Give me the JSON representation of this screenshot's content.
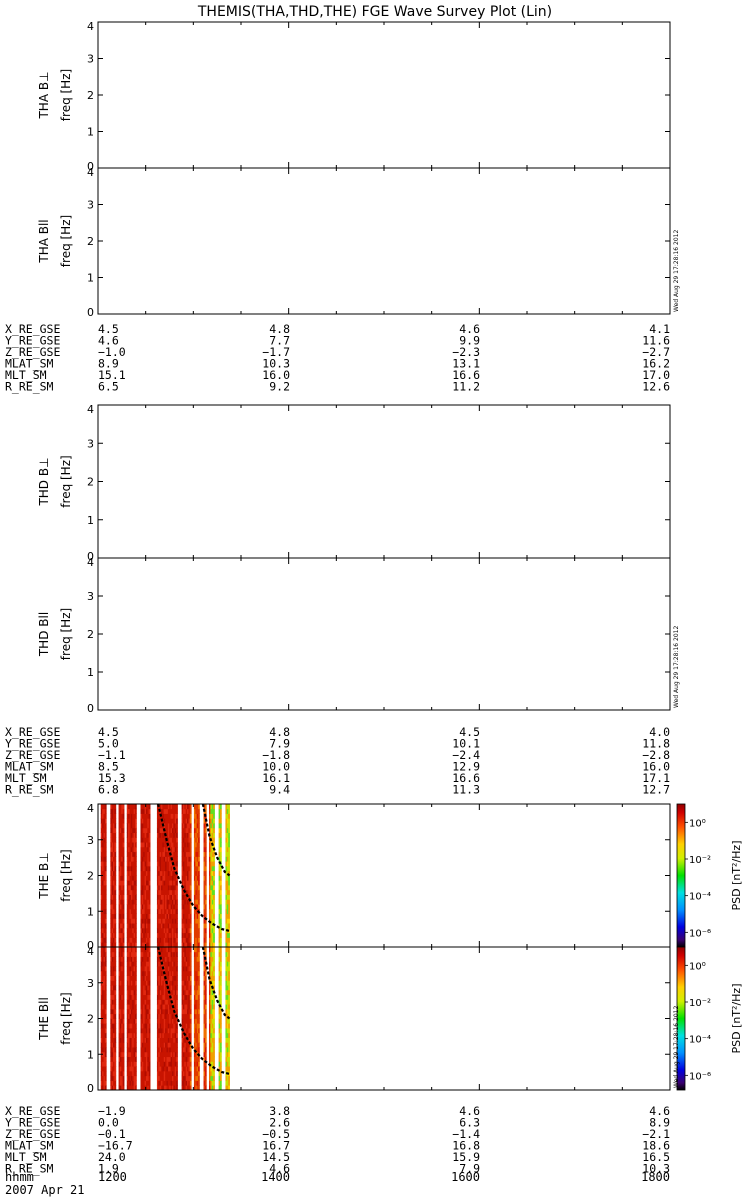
{
  "title": "THEMIS(THA,THD,THE) FGE Wave Survey Plot (Lin)",
  "timestamp_stamp": "Wed Aug 29 17:28:16 2012",
  "date_label": "2007 Apr 21",
  "ephem_labels": [
    "X_RE_GSE",
    "Y_RE_GSE",
    "Z_RE_GSE",
    "MLAT_SM",
    "MLT_SM",
    "R_RE_SM"
  ],
  "time_label": "hhmm",
  "time_ticks": [
    "1200",
    "1400",
    "1600",
    "1800"
  ],
  "freq_unit": "freq [Hz]",
  "colorbar": {
    "label_psd": "PSD",
    "label_units": "[nT²/Hz]",
    "ticks": [
      "10⁰",
      "10⁻²",
      "10⁻⁴",
      "10⁻⁶"
    ],
    "exponents": [
      0,
      -2,
      -4,
      -6
    ]
  },
  "chart_data": [
    {
      "type": "heatmap",
      "id": "tha-bperp",
      "probe_label": "THA B⊥",
      "ylabel": "freq [Hz]",
      "ylim": [
        0,
        4
      ],
      "yticks": [
        "0",
        "1",
        "2",
        "3",
        "4"
      ],
      "has_data": false
    },
    {
      "type": "heatmap",
      "id": "tha-bpar",
      "probe_label": "THA Bll",
      "ylabel": "freq [Hz]",
      "ylim": [
        0,
        4
      ],
      "yticks": [
        "0",
        "1",
        "2",
        "3",
        "4"
      ],
      "has_data": false
    },
    {
      "type": "table",
      "id": "tha-ephem",
      "rows": [
        {
          "label": "X_RE_GSE",
          "values": [
            "4.5",
            "4.8",
            "4.6",
            "4.1"
          ]
        },
        {
          "label": "Y_RE_GSE",
          "values": [
            "4.6",
            "7.7",
            "9.9",
            "11.6"
          ]
        },
        {
          "label": "Z_RE_GSE",
          "values": [
            "−1.0",
            "−1.7",
            "−2.3",
            "−2.7"
          ]
        },
        {
          "label": "MLAT_SM",
          "values": [
            "8.9",
            "10.3",
            "13.1",
            "16.2"
          ]
        },
        {
          "label": "MLT_SM",
          "values": [
            "15.1",
            "16.0",
            "16.6",
            "17.0"
          ]
        },
        {
          "label": "R_RE_SM",
          "values": [
            "6.5",
            "9.2",
            "11.2",
            "12.6"
          ]
        }
      ]
    },
    {
      "type": "heatmap",
      "id": "thd-bperp",
      "probe_label": "THD B⊥",
      "ylabel": "freq [Hz]",
      "ylim": [
        0,
        4
      ],
      "yticks": [
        "0",
        "1",
        "2",
        "3",
        "4"
      ],
      "has_data": false
    },
    {
      "type": "heatmap",
      "id": "thd-bpar",
      "probe_label": "THD Bll",
      "ylabel": "freq [Hz]",
      "ylim": [
        0,
        4
      ],
      "yticks": [
        "0",
        "1",
        "2",
        "3",
        "4"
      ],
      "has_data": false
    },
    {
      "type": "table",
      "id": "thd-ephem",
      "rows": [
        {
          "label": "X_RE_GSE",
          "values": [
            "4.5",
            "4.8",
            "4.5",
            "4.0"
          ]
        },
        {
          "label": "Y_RE_GSE",
          "values": [
            "5.0",
            "7.9",
            "10.1",
            "11.8"
          ]
        },
        {
          "label": "Z_RE_GSE",
          "values": [
            "−1.1",
            "−1.8",
            "−2.4",
            "−2.8"
          ]
        },
        {
          "label": "MLAT_SM",
          "values": [
            "8.5",
            "10.0",
            "12.9",
            "16.0"
          ]
        },
        {
          "label": "MLT_SM",
          "values": [
            "15.3",
            "16.1",
            "16.6",
            "17.1"
          ]
        },
        {
          "label": "R_RE_SM",
          "values": [
            "6.8",
            "9.4",
            "11.3",
            "12.7"
          ]
        }
      ]
    },
    {
      "type": "heatmap",
      "id": "the-bperp",
      "probe_label": "THE B⊥",
      "ylabel": "freq [Hz]",
      "ylim": [
        0,
        4
      ],
      "yticks": [
        "0",
        "1",
        "2",
        "3",
        "4"
      ],
      "has_data": true,
      "time_range_hhmm": [
        "1200",
        "1800"
      ],
      "data_end_hour": 13.38,
      "gaps_hours": [
        [
          12.0,
          12.03
        ],
        [
          12.09,
          12.13
        ],
        [
          12.18,
          12.21
        ],
        [
          12.28,
          12.3
        ],
        [
          12.4,
          12.45
        ],
        [
          12.55,
          12.62
        ],
        [
          12.83,
          12.88
        ],
        [
          12.98,
          13.01
        ],
        [
          13.07,
          13.1
        ],
        [
          13.13,
          13.17
        ],
        [
          13.22,
          13.26
        ],
        [
          13.3,
          13.33
        ]
      ],
      "gyro_traces": [
        {
          "name": "trace-1",
          "points": [
            [
              12.63,
              4.0
            ],
            [
              12.72,
              3.0
            ],
            [
              12.8,
              2.2
            ],
            [
              12.9,
              1.6
            ],
            [
              13.0,
              1.15
            ],
            [
              13.1,
              0.85
            ],
            [
              13.2,
              0.65
            ],
            [
              13.3,
              0.5
            ],
            [
              13.38,
              0.45
            ]
          ]
        },
        {
          "name": "trace-2",
          "points": [
            [
              13.1,
              4.0
            ],
            [
              13.17,
              3.1
            ],
            [
              13.25,
              2.5
            ],
            [
              13.33,
              2.1
            ],
            [
              13.38,
              2.0
            ]
          ]
        }
      ]
    },
    {
      "type": "heatmap",
      "id": "the-bpar",
      "probe_label": "THE Bll",
      "ylabel": "freq [Hz]",
      "ylim": [
        0,
        4
      ],
      "yticks": [
        "0",
        "1",
        "2",
        "3",
        "4"
      ],
      "has_data": true,
      "time_range_hhmm": [
        "1200",
        "1800"
      ],
      "data_end_hour": 13.38,
      "gaps_hours": [
        [
          12.0,
          12.03
        ],
        [
          12.09,
          12.13
        ],
        [
          12.18,
          12.21
        ],
        [
          12.28,
          12.3
        ],
        [
          12.4,
          12.45
        ],
        [
          12.55,
          12.62
        ],
        [
          12.83,
          12.88
        ],
        [
          12.98,
          13.01
        ],
        [
          13.07,
          13.1
        ],
        [
          13.13,
          13.17
        ],
        [
          13.22,
          13.26
        ],
        [
          13.3,
          13.33
        ]
      ],
      "gyro_traces": [
        {
          "name": "trace-1",
          "points": [
            [
              12.63,
              4.0
            ],
            [
              12.72,
              3.0
            ],
            [
              12.8,
              2.2
            ],
            [
              12.9,
              1.6
            ],
            [
              13.0,
              1.15
            ],
            [
              13.1,
              0.85
            ],
            [
              13.2,
              0.65
            ],
            [
              13.3,
              0.5
            ],
            [
              13.38,
              0.45
            ]
          ]
        },
        {
          "name": "trace-2",
          "points": [
            [
              13.1,
              4.0
            ],
            [
              13.17,
              3.1
            ],
            [
              13.25,
              2.5
            ],
            [
              13.33,
              2.1
            ],
            [
              13.38,
              2.0
            ]
          ]
        }
      ]
    },
    {
      "type": "table",
      "id": "the-ephem",
      "rows": [
        {
          "label": "X_RE_GSE",
          "values": [
            "−1.9",
            "3.8",
            "4.6",
            "4.6"
          ]
        },
        {
          "label": "Y_RE_GSE",
          "values": [
            "0.0",
            "2.6",
            "6.3",
            "8.9"
          ]
        },
        {
          "label": "Z_RE_GSE",
          "values": [
            "−0.1",
            "−0.5",
            "−1.4",
            "−2.1"
          ]
        },
        {
          "label": "MLAT_SM",
          "values": [
            "−16.7",
            "16.7",
            "16.8",
            "18.6"
          ]
        },
        {
          "label": "MLT_SM",
          "values": [
            "24.0",
            "14.5",
            "15.9",
            "16.5"
          ]
        },
        {
          "label": "R_RE_SM",
          "values": [
            "1.9",
            "4.6",
            "7.9",
            "10.3"
          ]
        }
      ]
    }
  ]
}
